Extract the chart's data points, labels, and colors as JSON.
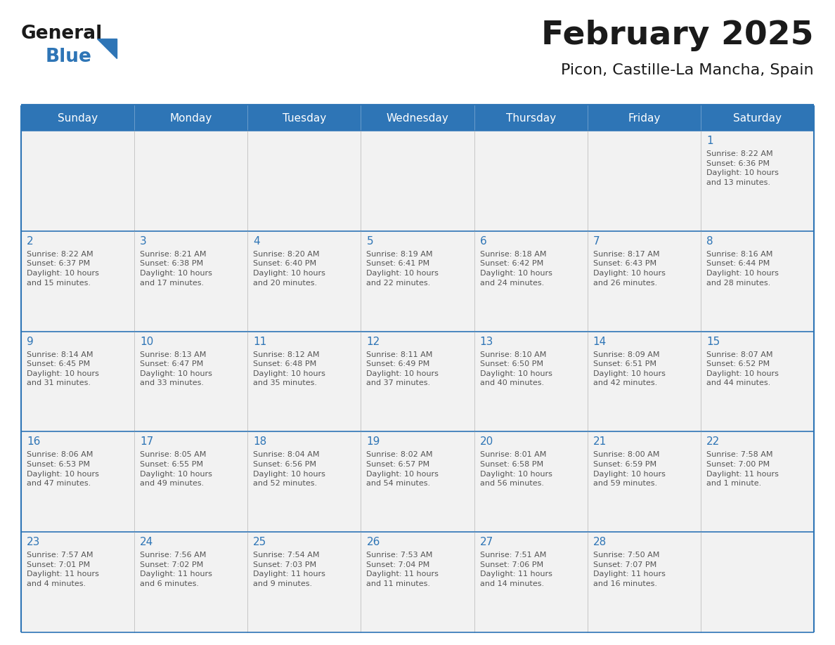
{
  "title": "February 2025",
  "subtitle": "Picon, Castille-La Mancha, Spain",
  "days_of_week": [
    "Sunday",
    "Monday",
    "Tuesday",
    "Wednesday",
    "Thursday",
    "Friday",
    "Saturday"
  ],
  "header_bg": "#2E75B6",
  "header_text": "#FFFFFF",
  "cell_bg": "#F2F2F2",
  "border_color": "#2E75B6",
  "border_thin": "#AAAAAA",
  "day_num_color": "#2E75B6",
  "info_color": "#555555",
  "title_color": "#1A1A1A",
  "subtitle_color": "#1A1A1A",
  "logo_general_color": "#1A1A1A",
  "logo_blue_color": "#2E75B6",
  "weeks": [
    [
      {
        "day": null,
        "info": ""
      },
      {
        "day": null,
        "info": ""
      },
      {
        "day": null,
        "info": ""
      },
      {
        "day": null,
        "info": ""
      },
      {
        "day": null,
        "info": ""
      },
      {
        "day": null,
        "info": ""
      },
      {
        "day": 1,
        "info": "Sunrise: 8:22 AM\nSunset: 6:36 PM\nDaylight: 10 hours\nand 13 minutes."
      }
    ],
    [
      {
        "day": 2,
        "info": "Sunrise: 8:22 AM\nSunset: 6:37 PM\nDaylight: 10 hours\nand 15 minutes."
      },
      {
        "day": 3,
        "info": "Sunrise: 8:21 AM\nSunset: 6:38 PM\nDaylight: 10 hours\nand 17 minutes."
      },
      {
        "day": 4,
        "info": "Sunrise: 8:20 AM\nSunset: 6:40 PM\nDaylight: 10 hours\nand 20 minutes."
      },
      {
        "day": 5,
        "info": "Sunrise: 8:19 AM\nSunset: 6:41 PM\nDaylight: 10 hours\nand 22 minutes."
      },
      {
        "day": 6,
        "info": "Sunrise: 8:18 AM\nSunset: 6:42 PM\nDaylight: 10 hours\nand 24 minutes."
      },
      {
        "day": 7,
        "info": "Sunrise: 8:17 AM\nSunset: 6:43 PM\nDaylight: 10 hours\nand 26 minutes."
      },
      {
        "day": 8,
        "info": "Sunrise: 8:16 AM\nSunset: 6:44 PM\nDaylight: 10 hours\nand 28 minutes."
      }
    ],
    [
      {
        "day": 9,
        "info": "Sunrise: 8:14 AM\nSunset: 6:45 PM\nDaylight: 10 hours\nand 31 minutes."
      },
      {
        "day": 10,
        "info": "Sunrise: 8:13 AM\nSunset: 6:47 PM\nDaylight: 10 hours\nand 33 minutes."
      },
      {
        "day": 11,
        "info": "Sunrise: 8:12 AM\nSunset: 6:48 PM\nDaylight: 10 hours\nand 35 minutes."
      },
      {
        "day": 12,
        "info": "Sunrise: 8:11 AM\nSunset: 6:49 PM\nDaylight: 10 hours\nand 37 minutes."
      },
      {
        "day": 13,
        "info": "Sunrise: 8:10 AM\nSunset: 6:50 PM\nDaylight: 10 hours\nand 40 minutes."
      },
      {
        "day": 14,
        "info": "Sunrise: 8:09 AM\nSunset: 6:51 PM\nDaylight: 10 hours\nand 42 minutes."
      },
      {
        "day": 15,
        "info": "Sunrise: 8:07 AM\nSunset: 6:52 PM\nDaylight: 10 hours\nand 44 minutes."
      }
    ],
    [
      {
        "day": 16,
        "info": "Sunrise: 8:06 AM\nSunset: 6:53 PM\nDaylight: 10 hours\nand 47 minutes."
      },
      {
        "day": 17,
        "info": "Sunrise: 8:05 AM\nSunset: 6:55 PM\nDaylight: 10 hours\nand 49 minutes."
      },
      {
        "day": 18,
        "info": "Sunrise: 8:04 AM\nSunset: 6:56 PM\nDaylight: 10 hours\nand 52 minutes."
      },
      {
        "day": 19,
        "info": "Sunrise: 8:02 AM\nSunset: 6:57 PM\nDaylight: 10 hours\nand 54 minutes."
      },
      {
        "day": 20,
        "info": "Sunrise: 8:01 AM\nSunset: 6:58 PM\nDaylight: 10 hours\nand 56 minutes."
      },
      {
        "day": 21,
        "info": "Sunrise: 8:00 AM\nSunset: 6:59 PM\nDaylight: 10 hours\nand 59 minutes."
      },
      {
        "day": 22,
        "info": "Sunrise: 7:58 AM\nSunset: 7:00 PM\nDaylight: 11 hours\nand 1 minute."
      }
    ],
    [
      {
        "day": 23,
        "info": "Sunrise: 7:57 AM\nSunset: 7:01 PM\nDaylight: 11 hours\nand 4 minutes."
      },
      {
        "day": 24,
        "info": "Sunrise: 7:56 AM\nSunset: 7:02 PM\nDaylight: 11 hours\nand 6 minutes."
      },
      {
        "day": 25,
        "info": "Sunrise: 7:54 AM\nSunset: 7:03 PM\nDaylight: 11 hours\nand 9 minutes."
      },
      {
        "day": 26,
        "info": "Sunrise: 7:53 AM\nSunset: 7:04 PM\nDaylight: 11 hours\nand 11 minutes."
      },
      {
        "day": 27,
        "info": "Sunrise: 7:51 AM\nSunset: 7:06 PM\nDaylight: 11 hours\nand 14 minutes."
      },
      {
        "day": 28,
        "info": "Sunrise: 7:50 AM\nSunset: 7:07 PM\nDaylight: 11 hours\nand 16 minutes."
      },
      {
        "day": null,
        "info": ""
      }
    ]
  ],
  "fig_width": 11.88,
  "fig_height": 9.18,
  "dpi": 100
}
